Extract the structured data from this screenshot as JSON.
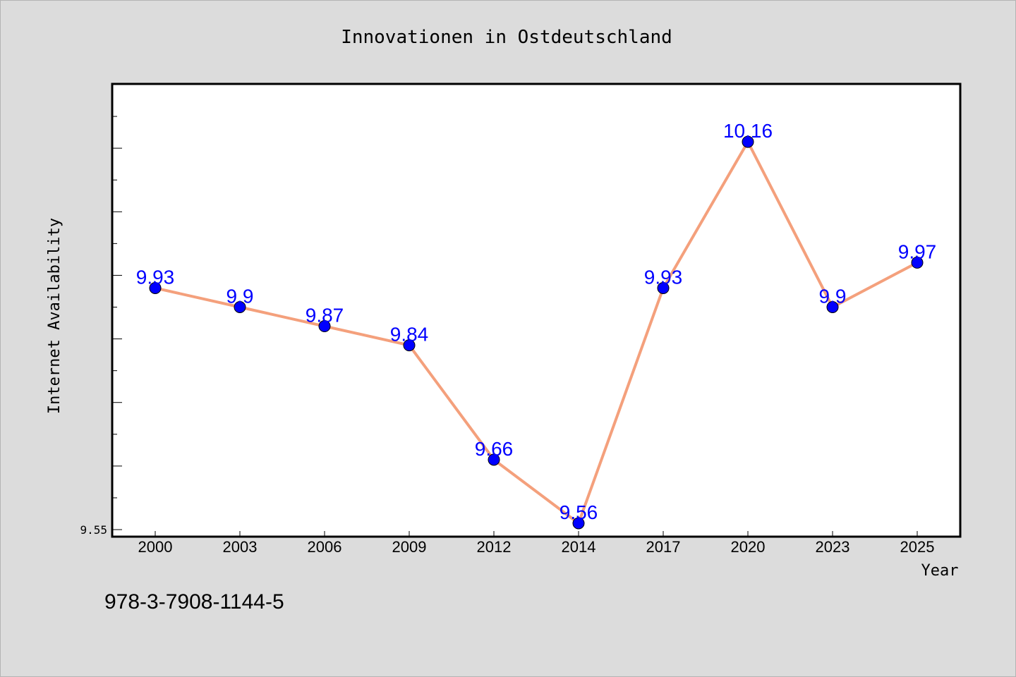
{
  "chart_data": {
    "type": "line",
    "title": "Innovationen in Ostdeutschland",
    "xlabel": "Year",
    "ylabel": "Internet Availability",
    "categories": [
      "2000",
      "2003",
      "2006",
      "2009",
      "2012",
      "2014",
      "2017",
      "2020",
      "2023",
      "2025"
    ],
    "values": [
      9.93,
      9.9,
      9.87,
      9.84,
      9.66,
      9.56,
      9.93,
      10.16,
      9.9,
      9.97
    ],
    "data_labels": [
      "9.93",
      "9.9",
      "9.87",
      "9.84",
      "9.66",
      "9.56",
      "9.93",
      "10.16",
      "9.9",
      "9.97"
    ],
    "ylim": [
      9.55,
      10.25
    ],
    "ytick_labels": [
      {
        "value": 9.55,
        "label": "9.55"
      }
    ],
    "grid": false,
    "line_color": "#f4a07c",
    "marker_color": "#0000ff",
    "label_color": "#0000ff"
  },
  "footer": {
    "isbn": "978-3-7908-1144-5"
  }
}
